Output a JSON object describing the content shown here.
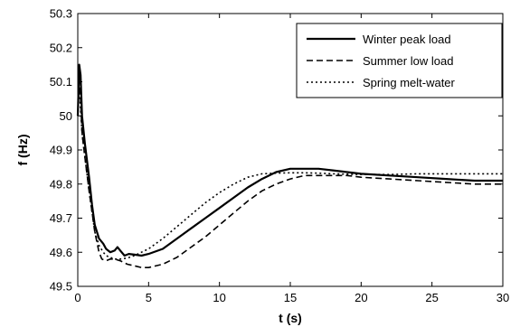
{
  "chart_data": {
    "type": "line",
    "xlabel": "t (s)",
    "ylabel": "f (Hz)",
    "xlim": [
      0,
      30
    ],
    "ylim": [
      49.5,
      50.3
    ],
    "xticks": [
      0,
      5,
      10,
      15,
      20,
      25,
      30
    ],
    "yticks": [
      49.5,
      49.6,
      49.7,
      49.8,
      49.9,
      50,
      50.1,
      50.2,
      50.3
    ],
    "grid": false,
    "legend_position": "top-right",
    "series": [
      {
        "name": "Winter peak load",
        "style": "solid",
        "x": [
          0,
          0.1,
          0.2,
          0.3,
          0.5,
          0.8,
          1.0,
          1.2,
          1.5,
          1.8,
          2.0,
          2.3,
          2.6,
          2.8,
          3.0,
          3.3,
          3.6,
          4.0,
          4.5,
          5.0,
          6.0,
          7.0,
          8.0,
          9.0,
          10.0,
          11.0,
          12.0,
          13.0,
          14.0,
          15.0,
          16.0,
          17.0,
          18.0,
          19.0,
          20.0,
          22.0,
          24.0,
          26.0,
          28.0,
          30.0
        ],
        "y": [
          50.0,
          50.15,
          50.12,
          50.0,
          49.92,
          49.82,
          49.74,
          49.68,
          49.64,
          49.625,
          49.61,
          49.6,
          49.605,
          49.615,
          49.605,
          49.59,
          49.595,
          49.593,
          49.59,
          49.595,
          49.61,
          49.64,
          49.67,
          49.7,
          49.73,
          49.76,
          49.79,
          49.815,
          49.835,
          49.845,
          49.845,
          49.845,
          49.84,
          49.835,
          49.83,
          49.825,
          49.82,
          49.815,
          49.81,
          49.81
        ]
      },
      {
        "name": "Summer low load",
        "style": "dashed",
        "x": [
          0,
          0.1,
          0.2,
          0.3,
          0.5,
          0.8,
          1.0,
          1.2,
          1.5,
          1.7,
          2.0,
          2.3,
          2.6,
          3.0,
          3.5,
          4.0,
          4.5,
          5.0,
          6.0,
          7.0,
          8.0,
          9.0,
          10.0,
          11.0,
          12.0,
          13.0,
          14.0,
          15.0,
          16.0,
          17.0,
          18.0,
          19.0,
          20.0,
          22.0,
          24.0,
          26.0,
          28.0,
          30.0
        ],
        "y": [
          50.0,
          50.1,
          50.05,
          49.95,
          49.88,
          49.78,
          49.72,
          49.66,
          49.6,
          49.58,
          49.575,
          49.58,
          49.58,
          49.575,
          49.565,
          49.56,
          49.555,
          49.555,
          49.565,
          49.585,
          49.615,
          49.645,
          49.68,
          49.715,
          49.75,
          49.78,
          49.8,
          49.815,
          49.825,
          49.825,
          49.825,
          49.825,
          49.82,
          49.815,
          49.81,
          49.805,
          49.8,
          49.8
        ]
      },
      {
        "name": "Spring melt-water",
        "style": "dotted",
        "x": [
          0,
          0.1,
          0.2,
          0.3,
          0.5,
          0.8,
          1.0,
          1.2,
          1.5,
          1.8,
          2.0,
          2.3,
          2.6,
          3.0,
          3.5,
          4.0,
          4.5,
          5.0,
          6.0,
          7.0,
          8.0,
          9.0,
          10.0,
          11.0,
          12.0,
          13.0,
          14.0,
          15.0,
          16.0,
          17.0,
          18.0,
          20.0,
          22.0,
          24.0,
          26.0,
          28.0,
          30.0
        ],
        "y": [
          50.0,
          50.08,
          50.02,
          49.95,
          49.88,
          49.78,
          49.72,
          49.66,
          49.62,
          49.6,
          49.59,
          49.585,
          49.58,
          49.58,
          49.583,
          49.59,
          49.6,
          49.61,
          49.64,
          49.675,
          49.71,
          49.745,
          49.775,
          49.8,
          49.82,
          49.83,
          49.832,
          49.833,
          49.833,
          49.832,
          49.83,
          49.828,
          49.828,
          49.83,
          49.83,
          49.83,
          49.83
        ]
      }
    ]
  }
}
